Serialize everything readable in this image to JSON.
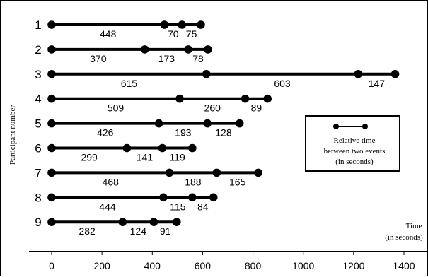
{
  "chart_data": {
    "type": "timeline",
    "ylabel": "Participant number",
    "xlabel": [
      "Time",
      "(in seconds)"
    ],
    "xlim": [
      0,
      1400
    ],
    "xticks": [
      0,
      200,
      400,
      600,
      800,
      1000,
      1200,
      1400
    ],
    "participants": [
      {
        "label": "1",
        "intervals": [
          448,
          70,
          75
        ]
      },
      {
        "label": "2",
        "intervals": [
          370,
          173,
          78
        ]
      },
      {
        "label": "3",
        "intervals": [
          615,
          603,
          147
        ]
      },
      {
        "label": "4",
        "intervals": [
          509,
          260,
          89
        ]
      },
      {
        "label": "5",
        "intervals": [
          426,
          193,
          128
        ]
      },
      {
        "label": "6",
        "intervals": [
          299,
          141,
          119
        ]
      },
      {
        "label": "7",
        "intervals": [
          468,
          188,
          165
        ]
      },
      {
        "label": "8",
        "intervals": [
          444,
          115,
          84
        ]
      },
      {
        "label": "9",
        "intervals": [
          282,
          124,
          91
        ]
      }
    ],
    "legend": {
      "position": "right",
      "lines": [
        "Relative time",
        "between two events",
        "(in seconds)"
      ]
    },
    "colors": {
      "line": "#000000",
      "background": "#ffffff"
    }
  }
}
